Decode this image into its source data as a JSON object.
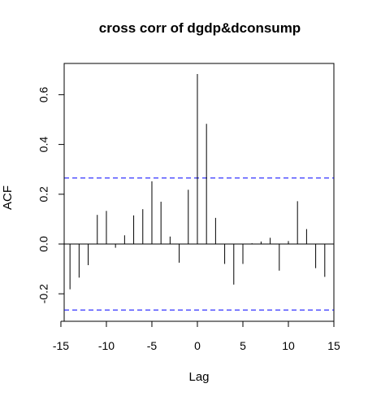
{
  "chart_data": {
    "type": "bar",
    "title": "cross corr of dgdp&dconsump",
    "xlabel": "Lag",
    "ylabel": "ACF",
    "xlim": [
      -15,
      15
    ],
    "ylim": [
      -0.3,
      0.72
    ],
    "x_ticks": [
      -15,
      -10,
      -5,
      0,
      5,
      10,
      15
    ],
    "y_ticks": [
      -0.2,
      0.0,
      0.2,
      0.4,
      0.6
    ],
    "x_tick_labels": [
      "-15",
      "-10",
      "-5",
      "0",
      "5",
      "10",
      "15"
    ],
    "y_tick_labels": [
      "-0.2",
      "0.0",
      "0.2",
      "0.4",
      "0.6"
    ],
    "confidence_band": 0.265,
    "colors": {
      "bars": "#000000",
      "confidence_band": "#0000ff",
      "axis": "#000000"
    },
    "series": [
      {
        "x": [
          -14,
          -13,
          -12,
          -11,
          -10,
          -9,
          -8,
          -7,
          -6,
          -5,
          -4,
          -3,
          -2,
          -1,
          0,
          1,
          2,
          3,
          4,
          5,
          6,
          7,
          8,
          9,
          10,
          11,
          12,
          13,
          14
        ],
        "values": [
          -0.182,
          -0.135,
          -0.085,
          0.117,
          0.133,
          -0.015,
          0.035,
          0.115,
          0.14,
          0.252,
          0.17,
          0.03,
          -0.075,
          0.218,
          0.683,
          0.483,
          0.105,
          -0.08,
          -0.163,
          -0.08,
          0.003,
          0.01,
          0.025,
          -0.107,
          0.012,
          0.172,
          0.06,
          -0.097,
          -0.132
        ]
      }
    ]
  }
}
